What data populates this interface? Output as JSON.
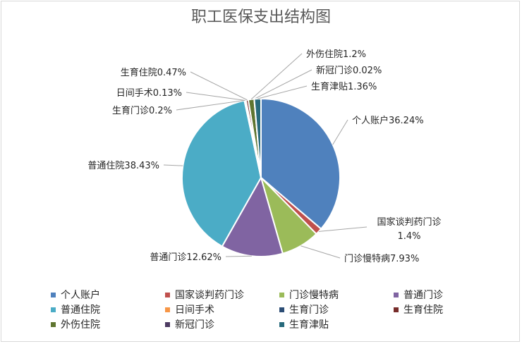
{
  "chart_data": {
    "type": "pie",
    "title": "职工医保支出结构图",
    "slices": [
      {
        "name": "个人账户",
        "value": 36.24,
        "label": "个人账户36.24%",
        "color": "#4f81bd"
      },
      {
        "name": "国家谈判药门诊",
        "value": 1.4,
        "label": "国家谈判药门诊",
        "label2": "1.4%",
        "color": "#c0504d"
      },
      {
        "name": "门诊慢特病",
        "value": 7.93,
        "label": "门诊慢特病7.93%",
        "color": "#9bbb59"
      },
      {
        "name": "普通门诊",
        "value": 12.62,
        "label": "普通门诊12.62%",
        "color": "#8064a2"
      },
      {
        "name": "普通住院",
        "value": 38.43,
        "label": "普通住院38.43%",
        "color": "#4bacc6"
      },
      {
        "name": "日间手术",
        "value": 0.13,
        "label": "日间手术0.13%",
        "color": "#f79646"
      },
      {
        "name": "生育门诊",
        "value": 0.2,
        "label": "生育门诊0.2%",
        "color": "#2c4d75"
      },
      {
        "name": "生育住院",
        "value": 0.47,
        "label": "生育住院0.47%",
        "color": "#772c2a"
      },
      {
        "name": "外伤住院",
        "value": 1.2,
        "label": "外伤住院1.2%",
        "color": "#5f7530"
      },
      {
        "name": "新冠门诊",
        "value": 0.02,
        "label": "新冠门诊0.02%",
        "color": "#4d3b62"
      },
      {
        "name": "生育津贴",
        "value": 1.36,
        "label": "生育津贴1.36%",
        "color": "#276a7c"
      }
    ],
    "legend_position": "bottom"
  }
}
